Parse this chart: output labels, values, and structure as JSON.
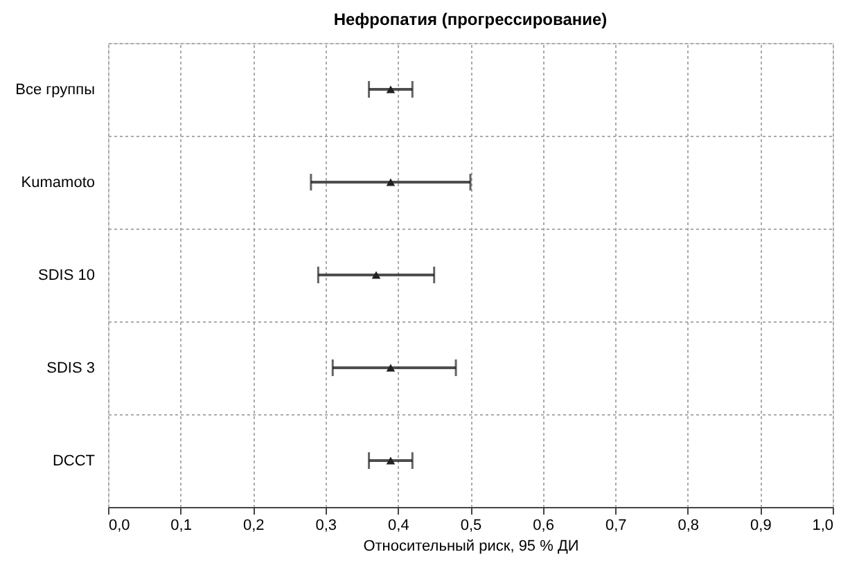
{
  "chart_data": {
    "type": "scatter",
    "title": "Нефропатия (прогрессирование)",
    "xlabel": "Относительный риск, 95 % ДИ",
    "categories": [
      "Все группы",
      "Kumamoto",
      "SDIS 10",
      "SDIS 3",
      "DCCT"
    ],
    "series": [
      {
        "color": "#222222",
        "values": [
          0.39,
          0.39,
          0.37,
          0.39,
          0.39
        ],
        "errors": [
          [
            0.36,
            0.42
          ],
          [
            0.28,
            0.5
          ],
          [
            0.29,
            0.45
          ],
          [
            0.31,
            0.48
          ],
          [
            0.36,
            0.42
          ]
        ]
      }
    ],
    "orientation": "horizontal",
    "xlim": [
      0,
      1
    ],
    "xticks": [
      {
        "value": 0,
        "label": "0,0"
      },
      {
        "value": 0.1,
        "label": "0,1"
      },
      {
        "value": 0.2,
        "label": "0,2"
      },
      {
        "value": 0.3,
        "label": "0,3"
      },
      {
        "value": 0.4,
        "label": "0,4"
      },
      {
        "value": 0.5,
        "label": "0,5"
      },
      {
        "value": 0.6,
        "label": "0,6"
      },
      {
        "value": 0.7,
        "label": "0,7"
      },
      {
        "value": 0.8,
        "label": "0,8"
      },
      {
        "value": 0.9,
        "label": "0,9"
      },
      {
        "value": 1,
        "label": "1,0"
      }
    ],
    "grid": true,
    "marker": "triangle"
  }
}
